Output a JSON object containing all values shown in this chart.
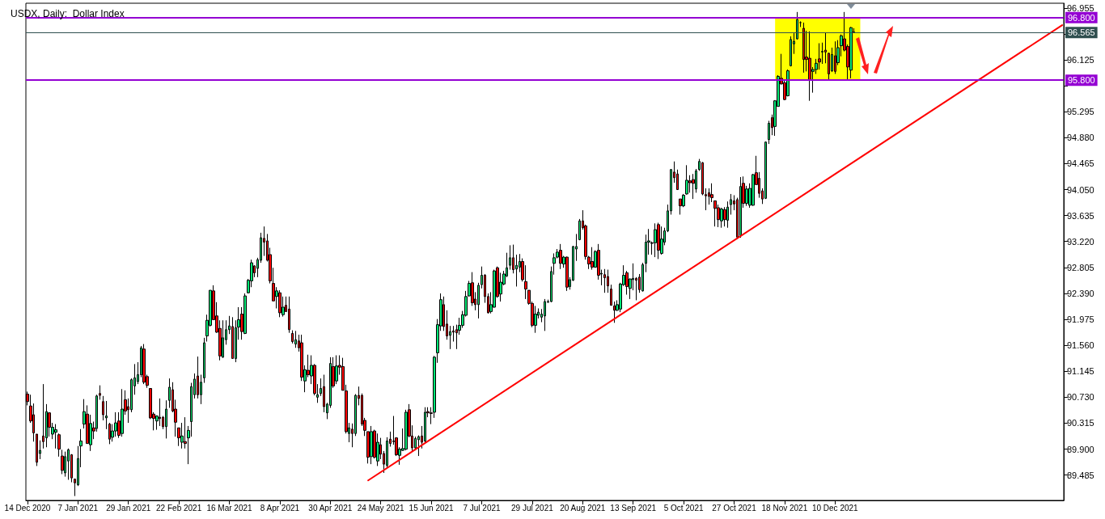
{
  "chart_data": {
    "type": "candlestick",
    "title": "USDX, Daily:  Dollar Index",
    "categories": [
      "14 Dec 2020",
      null,
      null,
      null,
      null,
      null,
      null,
      null,
      null,
      null,
      null,
      null,
      null,
      null,
      null,
      null,
      "7 Jan 2021",
      null,
      null,
      null,
      null,
      null,
      null,
      null,
      null,
      null,
      null,
      null,
      null,
      null,
      null,
      null,
      "29 Jan 2021",
      null,
      null,
      null,
      null,
      null,
      null,
      null,
      null,
      null,
      null,
      null,
      null,
      null,
      null,
      null,
      "22 Feb 2021",
      null,
      null,
      null,
      null,
      null,
      null,
      null,
      null,
      null,
      null,
      null,
      null,
      null,
      null,
      null,
      "16 Mar 2021",
      null,
      null,
      null,
      null,
      null,
      null,
      null,
      null,
      null,
      null,
      null,
      null,
      null,
      null,
      null,
      "8 Apr 2021",
      null,
      null,
      null,
      null,
      null,
      null,
      null,
      null,
      null,
      null,
      null,
      null,
      null,
      null,
      null,
      "30 Apr 2021",
      null,
      null,
      null,
      null,
      null,
      null,
      null,
      null,
      null,
      null,
      null,
      null,
      null,
      null,
      null,
      "24 May 2021",
      null,
      null,
      null,
      null,
      null,
      null,
      null,
      null,
      null,
      null,
      null,
      null,
      null,
      null,
      null,
      "15 Jun 2021",
      null,
      null,
      null,
      null,
      null,
      null,
      null,
      null,
      null,
      null,
      null,
      null,
      null,
      null,
      null,
      "7 Jul 2021",
      null,
      null,
      null,
      null,
      null,
      null,
      null,
      null,
      null,
      null,
      null,
      null,
      null,
      null,
      null,
      "29 Jul 2021",
      null,
      null,
      null,
      null,
      null,
      null,
      null,
      null,
      null,
      null,
      null,
      null,
      null,
      null,
      null,
      "20 Aug 2021",
      null,
      null,
      null,
      null,
      null,
      null,
      null,
      null,
      null,
      null,
      null,
      null,
      null,
      null,
      null,
      "13 Sep 2021",
      null,
      null,
      null,
      null,
      null,
      null,
      null,
      null,
      null,
      null,
      null,
      null,
      null,
      null,
      null,
      "5 Oct 2021",
      null,
      null,
      null,
      null,
      null,
      null,
      null,
      null,
      null,
      null,
      null,
      null,
      null,
      null,
      null,
      "27 Oct 2021",
      null,
      null,
      null,
      null,
      null,
      null,
      null,
      null,
      null,
      null,
      null,
      null,
      null,
      null,
      null,
      "18 Nov 2021",
      null,
      null,
      null,
      null,
      null,
      null,
      null,
      null,
      null,
      null,
      null,
      null,
      null,
      null,
      null,
      "10 Dec 2021",
      null,
      null,
      null,
      null,
      null,
      null,
      null,
      null,
      null,
      null,
      null,
      null,
      null,
      null,
      null,
      null,
      null,
      null,
      null,
      null,
      null,
      null,
      null,
      null,
      null,
      null,
      null,
      null,
      null,
      null,
      null,
      null,
      null,
      null,
      null,
      null,
      null,
      null,
      null,
      null,
      null,
      null,
      null,
      null,
      null,
      null,
      null,
      null,
      null,
      null,
      null,
      null,
      null,
      null,
      null,
      null,
      null,
      null,
      null,
      null,
      null,
      null,
      null,
      null,
      null,
      null,
      null,
      null,
      null,
      null,
      null,
      null
    ],
    "ohlc": [
      [
        90.78,
        90.82,
        90.6,
        90.66
      ],
      [
        90.59,
        90.77,
        90.32,
        90.35
      ],
      [
        90.45,
        90.63,
        90.02,
        90.16
      ],
      [
        90.14,
        90.14,
        89.63,
        89.69
      ],
      [
        89.83,
        90.04,
        89.74,
        89.88
      ],
      [
        90.11,
        90.94,
        89.91,
        90.02
      ],
      [
        90.08,
        90.62,
        89.93,
        90.5
      ],
      [
        90.48,
        90.49,
        90.1,
        90.25
      ],
      [
        90.14,
        90.32,
        90.06,
        90.25
      ],
      [
        90.17,
        90.3,
        89.91,
        90.21
      ],
      [
        90.13,
        90.15,
        89.78,
        89.9
      ],
      [
        89.79,
        89.89,
        89.5,
        89.56
      ],
      [
        89.52,
        89.86,
        89.46,
        89.78
      ],
      [
        89.71,
        89.91,
        89.41,
        89.89
      ],
      [
        89.81,
        89.82,
        89.37,
        89.44
      ],
      [
        89.42,
        89.43,
        89.15,
        89.36
      ],
      [
        89.33,
        89.95,
        89.31,
        89.75
      ],
      [
        89.95,
        90.22,
        89.61,
        90.03
      ],
      [
        90.3,
        90.7,
        90.23,
        90.5
      ],
      [
        90.46,
        90.6,
        89.99,
        89.99
      ],
      [
        89.97,
        90.45,
        89.87,
        90.31
      ],
      [
        90.24,
        90.34,
        90.06,
        90.19
      ],
      [
        90.23,
        90.77,
        90.18,
        90.75
      ],
      [
        90.79,
        90.92,
        90.69,
        90.76
      ],
      [
        90.66,
        90.75,
        90.36,
        90.45
      ],
      [
        90.4,
        90.67,
        90.22,
        90.43
      ],
      [
        90.3,
        90.32,
        89.98,
        90.06
      ],
      [
        90.09,
        90.3,
        90.02,
        90.19
      ],
      [
        90.19,
        90.49,
        90.1,
        90.32
      ],
      [
        90.35,
        90.49,
        90.08,
        90.12
      ],
      [
        90.15,
        90.86,
        90.1,
        90.54
      ],
      [
        90.69,
        90.84,
        90.45,
        90.51
      ],
      [
        90.58,
        90.71,
        90.32,
        90.53
      ],
      [
        90.53,
        91.03,
        90.49,
        91.01
      ],
      [
        90.91,
        91.26,
        90.77,
        91.04
      ],
      [
        90.98,
        91.29,
        90.94,
        91.09
      ],
      [
        91.09,
        91.55,
        91.05,
        91.52
      ],
      [
        91.5,
        91.58,
        90.94,
        90.97
      ],
      [
        91.06,
        91.09,
        90.88,
        90.92
      ],
      [
        90.87,
        90.87,
        90.38,
        90.4
      ],
      [
        90.46,
        90.49,
        90.2,
        90.39
      ],
      [
        90.35,
        90.44,
        90.21,
        90.43
      ],
      [
        90.41,
        90.71,
        90.27,
        90.39
      ],
      [
        90.41,
        90.43,
        90.22,
        90.26
      ],
      [
        90.26,
        90.68,
        90.07,
        90.54
      ],
      [
        90.68,
        91.03,
        90.56,
        90.89
      ],
      [
        90.85,
        90.97,
        90.49,
        90.51
      ],
      [
        90.54,
        90.69,
        90.1,
        90.33
      ],
      [
        90.24,
        90.24,
        89.95,
        90.08
      ],
      [
        90.01,
        90.32,
        89.91,
        90.11
      ],
      [
        90.02,
        90.41,
        89.91,
        89.99
      ],
      [
        90.08,
        90.27,
        89.66,
        90.2
      ],
      [
        90.34,
        90.96,
        90.1,
        90.9
      ],
      [
        90.77,
        91.11,
        90.71,
        91.02
      ],
      [
        91.07,
        91.38,
        90.71,
        90.77
      ],
      [
        90.77,
        91.09,
        90.62,
        90.97
      ],
      [
        91.04,
        91.68,
        90.96,
        91.6
      ],
      [
        91.71,
        92.05,
        91.62,
        91.96
      ],
      [
        91.88,
        92.44,
        91.86,
        92.44
      ],
      [
        92.43,
        92.52,
        91.97,
        91.97
      ],
      [
        92.03,
        92.25,
        91.76,
        91.77
      ],
      [
        91.83,
        91.96,
        91.32,
        91.39
      ],
      [
        91.37,
        91.96,
        91.36,
        91.68
      ],
      [
        91.65,
        91.96,
        91.57,
        91.81
      ],
      [
        91.81,
        92.03,
        91.74,
        91.87
      ],
      [
        91.86,
        92.01,
        91.35,
        91.35
      ],
      [
        91.35,
        91.96,
        91.29,
        91.84
      ],
      [
        91.85,
        92.17,
        91.65,
        91.97
      ],
      [
        92.06,
        92.17,
        91.65,
        91.78
      ],
      [
        91.75,
        92.39,
        91.74,
        92.35
      ],
      [
        92.4,
        92.62,
        92.39,
        92.6
      ],
      [
        92.59,
        92.93,
        92.49,
        92.88
      ],
      [
        92.83,
        92.84,
        92.65,
        92.72
      ],
      [
        92.79,
        92.96,
        92.65,
        92.93
      ],
      [
        92.92,
        93.36,
        92.88,
        93.28
      ],
      [
        93.27,
        93.46,
        92.99,
        93.21
      ],
      [
        93.23,
        93.34,
        92.9,
        92.92
      ],
      [
        93.01,
        93.12,
        92.55,
        92.59
      ],
      [
        92.55,
        92.8,
        92.27,
        92.27
      ],
      [
        92.34,
        92.49,
        92.15,
        92.43
      ],
      [
        92.4,
        92.44,
        92.01,
        92.08
      ],
      [
        92.05,
        92.34,
        92.02,
        92.17
      ],
      [
        92.2,
        92.34,
        92.1,
        92.1
      ],
      [
        92.14,
        92.34,
        91.76,
        91.81
      ],
      [
        91.75,
        91.8,
        91.59,
        91.62
      ],
      [
        91.58,
        91.79,
        91.52,
        91.65
      ],
      [
        91.63,
        91.73,
        91.46,
        91.52
      ],
      [
        91.6,
        91.73,
        90.99,
        91.05
      ],
      [
        90.99,
        91.24,
        90.81,
        91.17
      ],
      [
        91.16,
        91.41,
        91.05,
        91.09
      ],
      [
        91.07,
        91.4,
        90.94,
        91.24
      ],
      [
        91.24,
        91.26,
        90.76,
        90.79
      ],
      [
        90.73,
        90.94,
        90.64,
        90.77
      ],
      [
        90.79,
        91.03,
        90.75,
        90.87
      ],
      [
        90.9,
        91.09,
        90.49,
        90.58
      ],
      [
        90.48,
        90.64,
        90.38,
        90.62
      ],
      [
        90.6,
        91.37,
        90.56,
        91.27
      ],
      [
        91.22,
        91.37,
        90.88,
        90.91
      ],
      [
        90.99,
        91.4,
        90.94,
        91.23
      ],
      [
        91.24,
        91.4,
        91.09,
        91.21
      ],
      [
        91.22,
        91.36,
        90.84,
        90.84
      ],
      [
        90.83,
        90.93,
        90.15,
        90.18
      ],
      [
        90.15,
        90.32,
        90.01,
        90.24
      ],
      [
        90.22,
        90.31,
        89.93,
        90.15
      ],
      [
        90.15,
        90.78,
        90.11,
        90.76
      ],
      [
        90.76,
        90.9,
        90.6,
        90.71
      ],
      [
        90.76,
        90.79,
        90.27,
        90.3
      ],
      [
        90.36,
        90.4,
        90.11,
        90.2
      ],
      [
        90.18,
        90.18,
        89.67,
        89.77
      ],
      [
        89.78,
        90.27,
        89.66,
        90.18
      ],
      [
        90.19,
        90.21,
        89.75,
        89.77
      ],
      [
        89.71,
        90.15,
        89.63,
        90.01
      ],
      [
        89.97,
        90.08,
        89.74,
        89.82
      ],
      [
        89.83,
        89.87,
        89.52,
        89.66
      ],
      [
        89.64,
        90.09,
        89.61,
        90.03
      ],
      [
        90.06,
        90.18,
        89.94,
        89.99
      ],
      [
        90.03,
        90.43,
        89.97,
        90.02
      ],
      [
        90.08,
        90.09,
        89.79,
        89.81
      ],
      [
        89.8,
        89.93,
        89.65,
        89.9
      ],
      [
        89.88,
        90.23,
        89.87,
        89.91
      ],
      [
        89.9,
        90.53,
        89.88,
        90.49
      ],
      [
        90.53,
        90.62,
        90.09,
        90.11
      ],
      [
        90.11,
        90.28,
        89.87,
        89.92
      ],
      [
        89.92,
        90.1,
        89.88,
        90.07
      ],
      [
        90.05,
        90.12,
        89.79,
        90.1
      ],
      [
        90.11,
        90.27,
        89.91,
        90.01
      ],
      [
        90.03,
        90.57,
        89.99,
        90.49
      ],
      [
        90.5,
        90.57,
        90.41,
        90.48
      ],
      [
        90.48,
        90.57,
        90.3,
        90.47
      ],
      [
        90.49,
        91.39,
        90.4,
        91.37
      ],
      [
        91.44,
        91.98,
        91.28,
        91.89
      ],
      [
        91.87,
        92.39,
        91.79,
        92.29
      ],
      [
        92.21,
        92.34,
        91.79,
        91.86
      ],
      [
        91.9,
        92.12,
        91.65,
        91.71
      ],
      [
        91.72,
        91.87,
        91.5,
        91.78
      ],
      [
        91.79,
        91.87,
        91.62,
        91.77
      ],
      [
        91.81,
        91.89,
        91.5,
        91.76
      ],
      [
        91.8,
        92.0,
        91.73,
        91.88
      ],
      [
        91.88,
        92.11,
        91.84,
        92.05
      ],
      [
        92.04,
        92.43,
        92.02,
        92.34
      ],
      [
        92.35,
        92.59,
        92.34,
        92.55
      ],
      [
        92.56,
        92.73,
        92.19,
        92.24
      ],
      [
        92.3,
        92.41,
        92.12,
        92.21
      ],
      [
        92.21,
        92.56,
        91.99,
        92.52
      ],
      [
        92.53,
        92.82,
        92.47,
        92.68
      ],
      [
        92.68,
        92.7,
        92.24,
        92.34
      ],
      [
        92.34,
        92.39,
        92.07,
        92.08
      ],
      [
        92.1,
        92.41,
        92.07,
        92.21
      ],
      [
        92.17,
        92.77,
        92.16,
        92.75
      ],
      [
        92.8,
        92.82,
        92.32,
        92.34
      ],
      [
        92.38,
        92.72,
        92.26,
        92.57
      ],
      [
        92.54,
        92.75,
        92.52,
        92.7
      ],
      [
        92.67,
        93.04,
        92.65,
        92.8
      ],
      [
        92.84,
        93.16,
        92.77,
        92.96
      ],
      [
        92.96,
        93.17,
        92.71,
        92.77
      ],
      [
        92.78,
        93.01,
        92.5,
        92.84
      ],
      [
        92.81,
        93.02,
        92.73,
        92.9
      ],
      [
        92.9,
        92.95,
        92.58,
        92.61
      ],
      [
        92.58,
        92.84,
        92.3,
        92.46
      ],
      [
        92.44,
        92.44,
        92.21,
        92.23
      ],
      [
        92.23,
        92.26,
        91.85,
        91.88
      ],
      [
        91.88,
        92.19,
        91.76,
        92.06
      ],
      [
        92.04,
        92.15,
        91.99,
        92.09
      ],
      [
        92.01,
        92.14,
        91.93,
        92.06
      ],
      [
        92.03,
        92.3,
        91.79,
        92.26
      ],
      [
        92.25,
        92.29,
        92.24,
        92.26
      ],
      [
        92.26,
        92.82,
        92.25,
        92.74
      ],
      [
        92.87,
        93.03,
        92.69,
        92.96
      ],
      [
        92.97,
        93.1,
        92.95,
        93.05
      ],
      [
        93.08,
        93.18,
        92.78,
        92.87
      ],
      [
        92.86,
        92.99,
        92.8,
        92.97
      ],
      [
        92.97,
        92.98,
        92.43,
        92.49
      ],
      [
        92.5,
        92.65,
        92.45,
        92.61
      ],
      [
        92.6,
        93.15,
        92.59,
        93.14
      ],
      [
        93.1,
        93.34,
        92.91,
        93.14
      ],
      [
        93.25,
        93.58,
        93.24,
        93.55
      ],
      [
        93.55,
        93.72,
        93.41,
        93.44
      ],
      [
        93.47,
        93.49,
        92.93,
        92.98
      ],
      [
        92.97,
        92.99,
        92.78,
        92.86
      ],
      [
        92.9,
        93.13,
        92.77,
        92.81
      ],
      [
        92.81,
        93.08,
        92.8,
        93.06
      ],
      [
        93.08,
        93.18,
        92.61,
        92.68
      ],
      [
        92.7,
        92.77,
        92.52,
        92.71
      ],
      [
        92.69,
        92.78,
        92.4,
        92.64
      ],
      [
        92.66,
        92.77,
        92.4,
        92.51
      ],
      [
        92.46,
        92.53,
        92.2,
        92.2
      ],
      [
        92.19,
        92.26,
        91.92,
        92.12
      ],
      [
        92.12,
        92.28,
        92.11,
        92.21
      ],
      [
        92.14,
        92.56,
        92.09,
        92.54
      ],
      [
        92.53,
        92.84,
        92.51,
        92.68
      ],
      [
        92.72,
        92.75,
        92.37,
        92.5
      ],
      [
        92.47,
        92.63,
        92.3,
        92.62
      ],
      [
        92.61,
        92.87,
        92.44,
        92.63
      ],
      [
        92.63,
        92.65,
        92.28,
        92.6
      ],
      [
        92.65,
        92.7,
        92.4,
        92.45
      ],
      [
        92.43,
        92.88,
        92.42,
        92.85
      ],
      [
        92.87,
        93.33,
        92.73,
        93.21
      ],
      [
        93.21,
        93.42,
        93.01,
        93.23
      ],
      [
        93.2,
        93.22,
        93.01,
        93.19
      ],
      [
        93.2,
        93.51,
        92.97,
        93.41
      ],
      [
        93.49,
        93.52,
        92.94,
        93.08
      ],
      [
        93.03,
        93.46,
        93.01,
        93.26
      ],
      [
        93.21,
        93.44,
        93.16,
        93.39
      ],
      [
        93.39,
        93.81,
        93.37,
        93.71
      ],
      [
        93.71,
        94.38,
        93.65,
        94.37
      ],
      [
        94.33,
        94.5,
        94.16,
        94.24
      ],
      [
        94.3,
        94.37,
        94.05,
        94.05
      ],
      [
        93.9,
        93.9,
        93.65,
        93.79
      ],
      [
        93.79,
        93.98,
        93.77,
        93.96
      ],
      [
        93.98,
        94.44,
        93.97,
        94.2
      ],
      [
        94.19,
        94.28,
        94.0,
        94.16
      ],
      [
        94.21,
        94.3,
        93.9,
        94.15
      ],
      [
        94.06,
        94.38,
        94.0,
        94.35
      ],
      [
        94.37,
        94.54,
        94.35,
        94.5
      ],
      [
        94.48,
        94.49,
        93.96,
        93.98
      ],
      [
        93.97,
        94.07,
        93.72,
        93.95
      ],
      [
        94.0,
        94.07,
        93.81,
        93.94
      ],
      [
        93.97,
        94.15,
        93.85,
        93.92
      ],
      [
        93.87,
        93.87,
        93.46,
        93.75
      ],
      [
        93.76,
        93.81,
        93.45,
        93.57
      ],
      [
        93.55,
        93.76,
        93.44,
        93.74
      ],
      [
        93.73,
        93.77,
        93.46,
        93.57
      ],
      [
        93.56,
        93.86,
        93.44,
        93.77
      ],
      [
        93.81,
        93.98,
        93.65,
        93.89
      ],
      [
        93.87,
        93.96,
        93.72,
        93.82
      ],
      [
        93.89,
        93.92,
        93.26,
        93.29
      ],
      [
        93.31,
        94.25,
        93.28,
        94.1
      ],
      [
        94.15,
        94.26,
        93.76,
        93.83
      ],
      [
        93.83,
        94.11,
        93.79,
        94.06
      ],
      [
        93.8,
        94.15,
        93.76,
        94.07
      ],
      [
        93.8,
        94.3,
        93.79,
        94.29
      ],
      [
        94.32,
        94.59,
        94.13,
        94.13
      ],
      [
        94.23,
        94.33,
        93.92,
        93.99
      ],
      [
        94.03,
        94.07,
        93.82,
        93.9
      ],
      [
        93.91,
        94.82,
        93.9,
        94.81
      ],
      [
        94.85,
        95.15,
        94.78,
        95.11
      ],
      [
        95.2,
        95.25,
        94.92,
        95.04
      ],
      [
        95.06,
        95.48,
        94.91,
        95.47
      ],
      [
        95.38,
        95.88,
        95.38,
        95.86
      ],
      [
        95.83,
        96.22,
        95.73,
        95.74
      ],
      [
        95.76,
        95.81,
        95.48,
        95.49
      ],
      [
        95.55,
        95.97,
        95.54,
        95.95
      ],
      [
        96.03,
        96.5,
        96.02,
        96.45
      ],
      [
        96.38,
        96.55,
        96.22,
        96.42
      ],
      [
        96.46,
        96.89,
        96.45,
        96.77
      ],
      [
        96.72,
        96.74,
        96.65,
        96.72
      ],
      [
        96.63,
        96.72,
        95.92,
        96.13
      ],
      [
        96.17,
        96.59,
        95.94,
        96.13
      ],
      [
        96.15,
        96.58,
        95.47,
        95.81
      ],
      [
        95.94,
        96.01,
        95.6,
        95.97
      ],
      [
        95.97,
        96.14,
        95.9,
        96.07
      ],
      [
        96.14,
        96.39,
        95.97,
        96.09
      ],
      [
        96.25,
        96.4,
        96.06,
        96.26
      ],
      [
        96.28,
        96.56,
        96.07,
        96.25
      ],
      [
        96.23,
        96.24,
        95.81,
        95.9
      ],
      [
        95.95,
        96.32,
        95.93,
        96.21
      ],
      [
        96.19,
        96.42,
        95.9,
        95.94
      ],
      [
        96.08,
        96.44,
        96.04,
        96.32
      ],
      [
        96.35,
        96.53,
        96.18,
        96.51
      ],
      [
        96.46,
        96.89,
        96.26,
        96.28
      ],
      [
        96.34,
        96.37,
        95.81,
        96.01
      ],
      [
        95.96,
        96.65,
        95.83,
        96.64
      ],
      [
        96.57,
        96.63,
        96.55,
        96.565
      ],
      null,
      null,
      null,
      null,
      null,
      null,
      null,
      null,
      null,
      null,
      null,
      null,
      null,
      null,
      null,
      null,
      null,
      null,
      null,
      null,
      null,
      null,
      null,
      null,
      null,
      null,
      null,
      null,
      null,
      null,
      null,
      null,
      null,
      null,
      null,
      null,
      null,
      null,
      null,
      null,
      null,
      null,
      null,
      null,
      null,
      null,
      null,
      null,
      null,
      null,
      null,
      null,
      null,
      null,
      null,
      null,
      null,
      null,
      null,
      null,
      null,
      null,
      null,
      null,
      null,
      null
    ],
    "series": [
      {
        "type": "line",
        "color": "#ff0000",
        "values": [
          null,
          null,
          null,
          null,
          null,
          null,
          null,
          null,
          null,
          null,
          null,
          null,
          null,
          null,
          null,
          null,
          null,
          null,
          null,
          null,
          null,
          null,
          null,
          null,
          null,
          null,
          null,
          null,
          null,
          null,
          null,
          null,
          null,
          null,
          null,
          null,
          null,
          null,
          null,
          null,
          null,
          null,
          null,
          null,
          null,
          null,
          null,
          null,
          null,
          null,
          null,
          null,
          null,
          null,
          null,
          null,
          null,
          null,
          null,
          null,
          null,
          null,
          null,
          null,
          null,
          null,
          null,
          null,
          null,
          null,
          null,
          null,
          null,
          null,
          null,
          null,
          null,
          null,
          null,
          null,
          null,
          null,
          null,
          null,
          null,
          null,
          null,
          null,
          null,
          null,
          null,
          null,
          null,
          null,
          null,
          null,
          null,
          null,
          null,
          null,
          null,
          null,
          null,
          null,
          null,
          null,
          null,
          null,
          89.4,
          null,
          null,
          null,
          null,
          null,
          null,
          null,
          null,
          null,
          null,
          null,
          null,
          null,
          null,
          null,
          null,
          null,
          null,
          null,
          null,
          null,
          null,
          null,
          null,
          null,
          null,
          null,
          null,
          null,
          null,
          null,
          null,
          null,
          null,
          null,
          null,
          null,
          null,
          null,
          null,
          null,
          null,
          null,
          null,
          null,
          null,
          null,
          null,
          null,
          null,
          null,
          null,
          null,
          null,
          null,
          null,
          null,
          null,
          null,
          null,
          null,
          null,
          null,
          null,
          null,
          null,
          null,
          null,
          null,
          null,
          null,
          null,
          null,
          null,
          null,
          null,
          null,
          null,
          null,
          null,
          null,
          null,
          null,
          null,
          null,
          null,
          null,
          null,
          null,
          null,
          null,
          null,
          null,
          null,
          null,
          null,
          null,
          null,
          null,
          null,
          null,
          null,
          null,
          null,
          null,
          null,
          null,
          null,
          null,
          null,
          null,
          null,
          null,
          null,
          null,
          null,
          null,
          null,
          null,
          null,
          null,
          null,
          null,
          null,
          null,
          null,
          null,
          null,
          null,
          null,
          null,
          null,
          null,
          null,
          null,
          null,
          null,
          null,
          null,
          null,
          null,
          null,
          null,
          null,
          null,
          null,
          null,
          null,
          null,
          null,
          null,
          null,
          null,
          null,
          null,
          null,
          null,
          null,
          null,
          null,
          null,
          null,
          null,
          null,
          null,
          null,
          null,
          null,
          null,
          null,
          null,
          null,
          null,
          null,
          null,
          null,
          null,
          null,
          null,
          null,
          null,
          null,
          null,
          null,
          null,
          null,
          null,
          null,
          null,
          null,
          null,
          null,
          null,
          null,
          null,
          null,
          null,
          null,
          null,
          null,
          null,
          null,
          null,
          null,
          null,
          null,
          null,
          null,
          null,
          null,
          null,
          null,
          null,
          null,
          null,
          null,
          null,
          null,
          null,
          96.68
        ]
      }
    ],
    "ylim": [
      89.08,
      97.03
    ],
    "yticks": [
      {
        "value": 89.485,
        "label": "89.485"
      },
      {
        "value": 89.9,
        "label": "89.900"
      },
      {
        "value": 90.315,
        "label": "90.315"
      },
      {
        "value": 90.73,
        "label": "90.730"
      },
      {
        "value": 91.145,
        "label": "91.145"
      },
      {
        "value": 91.56,
        "label": "91.560"
      },
      {
        "value": 91.975,
        "label": "91.975"
      },
      {
        "value": 92.39,
        "label": "92.390"
      },
      {
        "value": 92.805,
        "label": "92.805"
      },
      {
        "value": 93.22,
        "label": "93.220"
      },
      {
        "value": 93.635,
        "label": "93.635"
      },
      {
        "value": 94.05,
        "label": "94.050"
      },
      {
        "value": 94.465,
        "label": "94.465"
      },
      {
        "value": 94.88,
        "label": "94.880"
      },
      {
        "value": 95.295,
        "label": "95.295"
      },
      {
        "value": 95.71,
        "label": null
      },
      {
        "value": 96.125,
        "label": "96.125"
      },
      {
        "value": 96.54,
        "label": null
      },
      {
        "value": 96.955,
        "label": "96.955"
      }
    ],
    "ref_lines": [
      {
        "axis": "y",
        "value": 96.8,
        "label": "96.800",
        "color": "#9400d3"
      },
      {
        "axis": "y",
        "value": 96.565,
        "label": "96.565",
        "color": "#2f4f4f"
      },
      {
        "axis": "y",
        "value": 95.8,
        "label": "95.800",
        "color": "#9400d3"
      }
    ],
    "bands": [
      {
        "axis": "y",
        "from": 95.8,
        "to": 96.8,
        "color": "#ffff00"
      }
    ],
    "grid": false
  }
}
